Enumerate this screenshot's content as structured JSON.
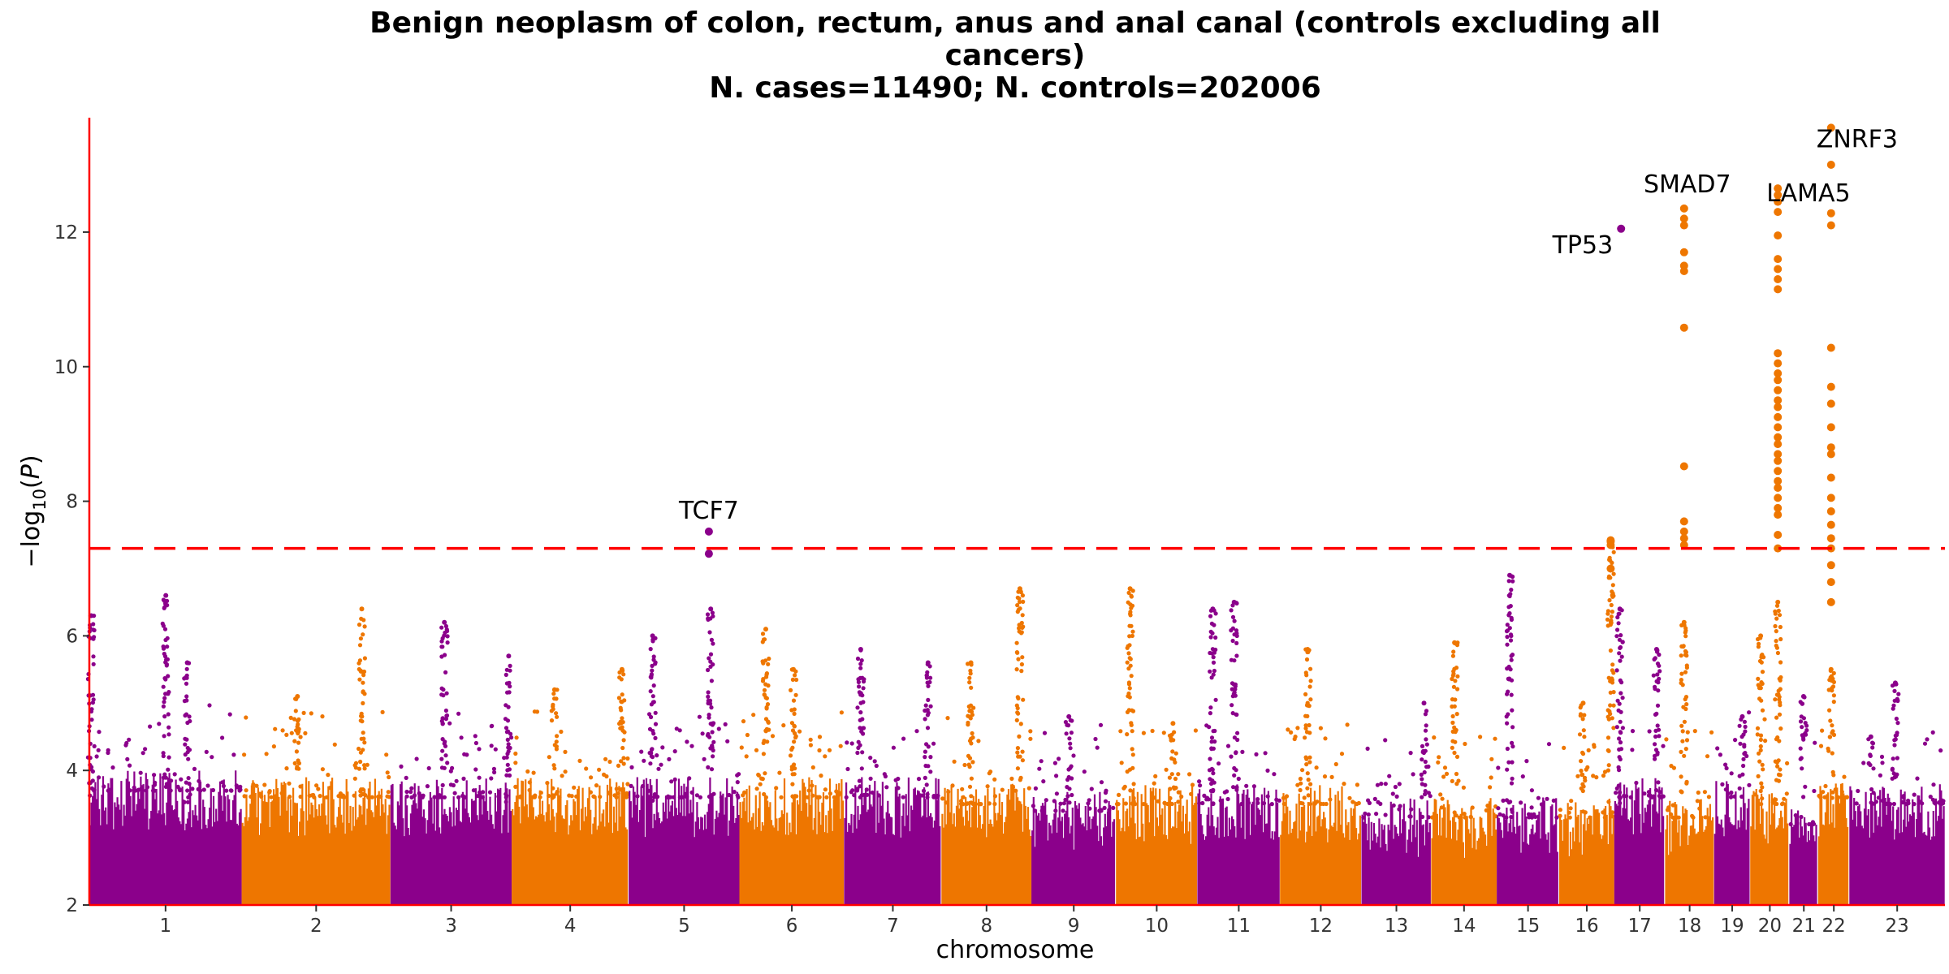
{
  "title": {
    "line1": "Benign neoplasm of colon, rectum, anus and anal canal (controls excluding all",
    "line2": "cancers)",
    "line3": "N. cases=11490; N. controls=202006"
  },
  "colors": {
    "odd_chromosome": "#8B008B",
    "even_chromosome": "#EE7600",
    "threshold_line": "#FF0000",
    "axis_line": "#FF0000"
  },
  "chart_data": {
    "type": "scatter",
    "subtype": "manhattan",
    "xlabel": "chromosome",
    "ylabel": "−log10(P)",
    "ylim": [
      2,
      13.7
    ],
    "yticks": [
      2,
      4,
      6,
      8,
      10,
      12
    ],
    "significance_threshold": 7.3,
    "grid": false,
    "legend": "none",
    "chromosomes": [
      {
        "label": "1",
        "start": 0.0,
        "end": 2.49,
        "baseline_max": 4.0,
        "peaks": [
          {
            "pos": 0.03,
            "max": 6.3
          },
          {
            "pos": 1.25,
            "max": 6.6
          },
          {
            "pos": 1.6,
            "max": 5.6
          }
        ]
      },
      {
        "label": "2",
        "start": 2.49,
        "end": 4.92,
        "baseline_max": 3.9,
        "peaks": [
          {
            "pos": 4.45,
            "max": 6.4
          },
          {
            "pos": 3.4,
            "max": 5.1
          }
        ]
      },
      {
        "label": "3",
        "start": 4.92,
        "end": 6.9,
        "baseline_max": 3.9,
        "peaks": [
          {
            "pos": 5.8,
            "max": 6.2
          },
          {
            "pos": 6.85,
            "max": 5.7
          }
        ]
      },
      {
        "label": "4",
        "start": 6.9,
        "end": 8.81,
        "baseline_max": 3.9,
        "peaks": [
          {
            "pos": 7.6,
            "max": 5.2
          },
          {
            "pos": 8.7,
            "max": 5.5
          }
        ]
      },
      {
        "label": "5",
        "start": 8.81,
        "end": 10.62,
        "baseline_max": 3.9,
        "peaks": [
          {
            "pos": 9.2,
            "max": 6.0
          },
          {
            "pos": 10.15,
            "max": 6.4
          }
        ]
      },
      {
        "label": "6",
        "start": 10.62,
        "end": 12.33,
        "baseline_max": 3.9,
        "peaks": [
          {
            "pos": 11.05,
            "max": 6.1
          },
          {
            "pos": 11.5,
            "max": 5.5
          }
        ]
      },
      {
        "label": "7",
        "start": 12.33,
        "end": 13.92,
        "baseline_max": 3.9,
        "peaks": [
          {
            "pos": 12.6,
            "max": 5.8
          },
          {
            "pos": 13.7,
            "max": 5.6
          }
        ]
      },
      {
        "label": "8",
        "start": 13.92,
        "end": 15.39,
        "baseline_max": 3.8,
        "peaks": [
          {
            "pos": 14.4,
            "max": 5.6
          },
          {
            "pos": 15.2,
            "max": 6.7
          }
        ]
      },
      {
        "label": "9",
        "start": 15.39,
        "end": 16.77,
        "baseline_max": 3.7,
        "peaks": [
          {
            "pos": 16.0,
            "max": 4.8
          }
        ]
      },
      {
        "label": "10",
        "start": 16.77,
        "end": 18.1,
        "baseline_max": 3.8,
        "peaks": [
          {
            "pos": 17.0,
            "max": 6.7
          },
          {
            "pos": 17.7,
            "max": 4.7
          }
        ]
      },
      {
        "label": "11",
        "start": 18.1,
        "end": 19.45,
        "baseline_max": 3.8,
        "peaks": [
          {
            "pos": 18.35,
            "max": 6.4
          },
          {
            "pos": 18.7,
            "max": 6.5
          }
        ]
      },
      {
        "label": "12",
        "start": 19.45,
        "end": 20.78,
        "baseline_max": 3.8,
        "peaks": [
          {
            "pos": 19.9,
            "max": 5.8
          }
        ]
      },
      {
        "label": "13",
        "start": 20.78,
        "end": 21.92,
        "baseline_max": 3.6,
        "peaks": [
          {
            "pos": 21.8,
            "max": 5.0
          }
        ]
      },
      {
        "label": "14",
        "start": 21.92,
        "end": 22.99,
        "baseline_max": 3.6,
        "peaks": [
          {
            "pos": 22.3,
            "max": 5.9
          }
        ]
      },
      {
        "label": "15",
        "start": 22.99,
        "end": 24.01,
        "baseline_max": 3.6,
        "peaks": [
          {
            "pos": 23.2,
            "max": 6.9
          }
        ]
      },
      {
        "label": "16",
        "start": 24.01,
        "end": 24.91,
        "baseline_max": 3.6,
        "peaks": [
          {
            "pos": 24.4,
            "max": 5.0
          },
          {
            "pos": 24.85,
            "max": 7.4
          }
        ]
      },
      {
        "label": "17",
        "start": 24.91,
        "end": 25.74,
        "baseline_max": 3.9,
        "peaks": [
          {
            "pos": 25.0,
            "max": 6.4
          },
          {
            "pos": 25.6,
            "max": 5.8
          }
        ]
      },
      {
        "label": "18",
        "start": 25.74,
        "end": 26.54,
        "baseline_max": 3.6,
        "peaks": [
          {
            "pos": 26.05,
            "max": 6.2
          }
        ]
      },
      {
        "label": "19",
        "start": 26.54,
        "end": 27.13,
        "baseline_max": 3.9,
        "peaks": [
          {
            "pos": 27.0,
            "max": 4.8
          }
        ]
      },
      {
        "label": "20",
        "start": 27.13,
        "end": 27.77,
        "baseline_max": 3.8,
        "peaks": [
          {
            "pos": 27.3,
            "max": 6.0
          },
          {
            "pos": 27.58,
            "max": 6.5
          }
        ]
      },
      {
        "label": "21",
        "start": 27.77,
        "end": 28.24,
        "baseline_max": 3.5,
        "peaks": [
          {
            "pos": 28.0,
            "max": 5.1
          }
        ]
      },
      {
        "label": "22",
        "start": 28.24,
        "end": 28.75,
        "baseline_max": 3.9,
        "peaks": [
          {
            "pos": 28.45,
            "max": 5.5
          }
        ]
      },
      {
        "label": "23",
        "start": 28.75,
        "end": 30.31,
        "baseline_max": 3.8,
        "peaks": [
          {
            "pos": 29.5,
            "max": 5.3
          },
          {
            "pos": 29.1,
            "max": 4.5
          }
        ]
      }
    ],
    "significant_hits": [
      {
        "chrom": "5",
        "pos": 10.12,
        "values": [
          7.55,
          7.22
        ]
      },
      {
        "chrom": "16",
        "pos": 24.85,
        "values": [
          7.42,
          7.4,
          7.35,
          7.0
        ]
      },
      {
        "chrom": "17",
        "pos": 25.02,
        "values": [
          12.05
        ]
      },
      {
        "chrom": "18",
        "pos": 26.05,
        "values": [
          12.35,
          12.2,
          12.1,
          11.7,
          11.5,
          11.42,
          10.58,
          8.52,
          7.7,
          7.55,
          7.45,
          7.35
        ]
      },
      {
        "chrom": "20",
        "pos": 27.58,
        "values": [
          12.65,
          12.55,
          12.45,
          12.3,
          11.95,
          11.6,
          11.45,
          11.3,
          11.15,
          10.2,
          10.05,
          9.9,
          9.8,
          9.65,
          9.5,
          9.4,
          9.25,
          9.1,
          8.95,
          8.85,
          8.7,
          8.6,
          8.45,
          8.3,
          8.2,
          8.05,
          7.9,
          7.8,
          7.5,
          7.3
        ]
      },
      {
        "chrom": "22",
        "pos": 28.45,
        "values": [
          13.55,
          13.0,
          12.28,
          12.1,
          10.28,
          9.7,
          9.45,
          9.1,
          8.8,
          8.7,
          8.35,
          8.05,
          7.85,
          7.65,
          7.45,
          7.3,
          7.05,
          6.8,
          6.5
        ]
      }
    ],
    "annotations": [
      {
        "label": "TCF7",
        "x": 10.12,
        "y": 7.55
      },
      {
        "label": "TP53",
        "x": 25.02,
        "y": 12.05
      },
      {
        "label": "SMAD7",
        "x": 26.05,
        "y": 12.35
      },
      {
        "label": "LAMA5",
        "x": 27.58,
        "y": 12.65
      },
      {
        "label": "ZNRF3",
        "x": 28.45,
        "y": 13.55
      }
    ]
  }
}
